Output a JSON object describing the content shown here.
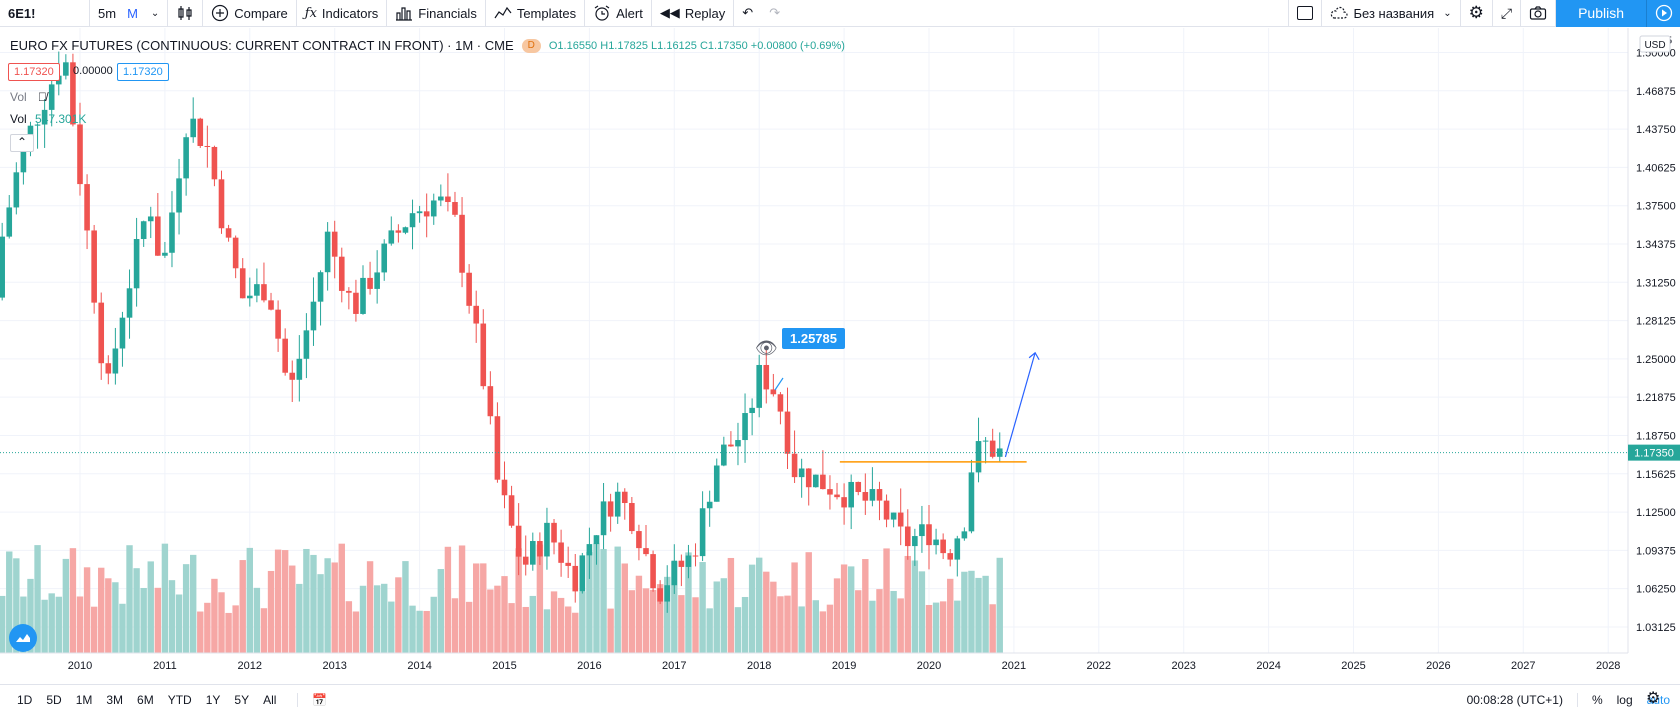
{
  "toolbar": {
    "symbol": "6E1!",
    "interval": "5m",
    "interval_alt": "M",
    "compare": "Compare",
    "indicators": "Indicators",
    "financials": "Financials",
    "templates": "Templates",
    "alert": "Alert",
    "replay": "Replay",
    "layout_name": "Без названия",
    "publish": "Publish"
  },
  "legend": {
    "title": "EURO FX FUTURES (CONTINUOUS: CURRENT CONTRACT IN FRONT) · 1M · CME",
    "badge": "D",
    "open": "O1.16550",
    "high": "H1.17825",
    "low": "L1.16125",
    "close": "C1.17350",
    "change": "+0.00800 (+0.69%)",
    "bid": "1.17320",
    "spread": "0.00000",
    "ask": "1.17320",
    "vol_label": "Vol",
    "vol2_label": "Vol",
    "vol2_value": "547.301K"
  },
  "annotation": {
    "label": "1.25785"
  },
  "price_axis": {
    "currency": "USD",
    "current": "1.17350",
    "ticks": [
      "1.50000",
      "1.46875",
      "1.43750",
      "1.40625",
      "1.37500",
      "1.34375",
      "1.31250",
      "1.28125",
      "1.25000",
      "1.21875",
      "1.18750",
      "1.15625",
      "1.12500",
      "1.09375",
      "1.06250",
      "1.03125"
    ],
    "top_partial": "5"
  },
  "chart_data": {
    "type": "candlestick",
    "interval": "1M",
    "ylim": [
      1.01,
      1.52
    ],
    "x_labels": [
      "2010",
      "2011",
      "2012",
      "2013",
      "2014",
      "2015",
      "2016",
      "2017",
      "2018",
      "2019",
      "2020",
      "2021",
      "2022",
      "2023",
      "2024",
      "2025",
      "2026",
      "2027",
      "2028"
    ],
    "current_price": 1.1735,
    "horizontal_level": 1.166,
    "arrow": {
      "from": [
        2020.9,
        1.17
      ],
      "to": [
        2021.25,
        1.255
      ]
    },
    "series_up_color": "#26a69a",
    "series_down_color": "#ef5350"
  },
  "bottombar": {
    "ranges": [
      "1D",
      "5D",
      "1M",
      "3M",
      "6M",
      "YTD",
      "1Y",
      "5Y",
      "All"
    ],
    "time": "00:08:28 (UTC+1)",
    "percent": "%",
    "log": "log",
    "auto": "auto"
  }
}
